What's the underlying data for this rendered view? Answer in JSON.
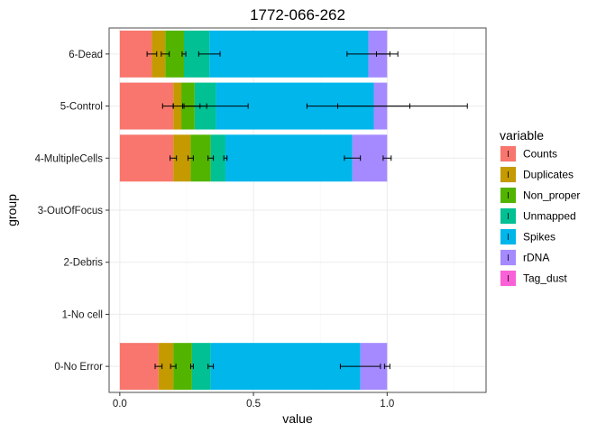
{
  "chart_data": {
    "type": "bar",
    "orientation": "horizontal",
    "stacked": true,
    "title": "1772-066-262",
    "xlabel": "value",
    "ylabel": "group",
    "xlim": [
      -0.04,
      1.37
    ],
    "x_ticks": [
      0.0,
      0.5,
      1.0
    ],
    "x_tick_labels": [
      "0.0",
      "0.5",
      "1.0"
    ],
    "grid": true,
    "legend_position": "right",
    "legend_title": "variable",
    "categories": [
      "0-No Error",
      "1-No cell",
      "2-Debris",
      "3-OutOfFocus",
      "4-MultipleCells",
      "5-Control",
      "6-Dead"
    ],
    "series": [
      {
        "name": "Counts",
        "color": "#F8766D",
        "values": [
          0.145,
          null,
          null,
          null,
          0.2,
          0.2,
          0.12
        ],
        "error": [
          0.013,
          null,
          null,
          null,
          0.012,
          0.0,
          0.018
        ]
      },
      {
        "name": "Duplicates",
        "color": "#C49A00",
        "values": [
          0.055,
          null,
          null,
          null,
          0.065,
          0.03,
          0.05
        ],
        "error": [
          0.01,
          null,
          null,
          null,
          0.01,
          0.07,
          0.015
        ]
      },
      {
        "name": "Non_proper",
        "color": "#53B400",
        "values": [
          0.07,
          null,
          null,
          null,
          0.075,
          0.05,
          0.07
        ],
        "error": [
          0.005,
          null,
          null,
          null,
          0.01,
          0.045,
          0.007
        ]
      },
      {
        "name": "Unmapped",
        "color": "#00C094",
        "values": [
          0.07,
          null,
          null,
          null,
          0.055,
          0.08,
          0.095
        ],
        "error": [
          0.01,
          null,
          null,
          null,
          0.006,
          0.12,
          0.04
        ]
      },
      {
        "name": "Spikes",
        "color": "#00B6EB",
        "values": [
          0.56,
          null,
          null,
          null,
          0.475,
          0.59,
          0.595
        ],
        "error": [
          0.075,
          null,
          null,
          null,
          0.03,
          0.135,
          0.08
        ]
      },
      {
        "name": "rDNA",
        "color": "#A58AFF",
        "values": [
          0.1,
          null,
          null,
          null,
          0.13,
          0.05,
          0.07
        ],
        "error": [
          0.01,
          null,
          null,
          null,
          0.015,
          0.3,
          0.04
        ]
      },
      {
        "name": "Tag_dust",
        "color": "#FB61D7",
        "values": [
          0.0,
          null,
          null,
          null,
          0.0,
          0.0,
          0.0
        ],
        "error": [
          null,
          null,
          null,
          null,
          null,
          null,
          null
        ]
      }
    ]
  },
  "colors": {
    "panel_border": "#4d4d4d",
    "major_grid": "#ebebeb",
    "minor_grid": "#f5f5f5",
    "errorbar": "#000000"
  }
}
